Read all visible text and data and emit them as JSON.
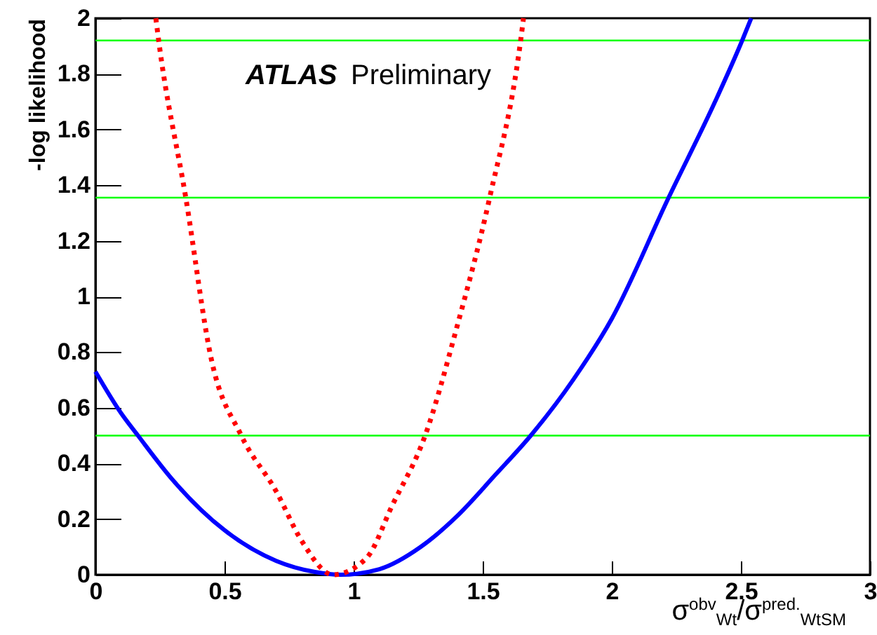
{
  "chart_data": {
    "type": "line",
    "xlabel": "σ$^{obv}$$_{Wt}$/σ$^{pred.}$$_{Wt}$$_{SM}$",
    "ylabel": "-log likelihood",
    "annotations": [
      "ATLAS Preliminary"
    ],
    "xlim": [
      0,
      3
    ],
    "ylim": [
      0,
      2
    ],
    "xticks": [
      0,
      0.5,
      1,
      1.5,
      2,
      2.5,
      3
    ],
    "yticks": [
      0,
      0.2,
      0.4,
      0.6,
      0.8,
      1,
      1.2,
      1.4,
      1.6,
      1.8,
      2
    ],
    "series": [
      {
        "color": "#0000ff",
        "line_style": "solid",
        "x": [
          0,
          0.1,
          0.165,
          0.3,
          0.5,
          0.7,
          0.85,
          0.95,
          1.1,
          1.26,
          1.4,
          1.55,
          1.686,
          1.85,
          2.0,
          2.22,
          2.4,
          2.505,
          2.54
        ],
        "values": [
          0.73,
          0.58,
          0.5,
          0.34,
          0.16,
          0.05,
          0.01,
          0,
          0.02,
          0.1,
          0.21,
          0.36,
          0.5,
          0.7,
          0.92,
          1.355,
          1.7,
          1.92,
          2.0
        ]
      },
      {
        "color": "#ff0000",
        "line_style": "dotted",
        "x": [
          0.234,
          0.245,
          0.35,
          0.45,
          0.565,
          0.7,
          0.8,
          0.92,
          1.05,
          1.15,
          1.277,
          1.4,
          1.527,
          1.647,
          1.658
        ],
        "values": [
          2.0,
          1.92,
          1.355,
          0.77,
          0.5,
          0.3,
          0.12,
          0,
          0.06,
          0.25,
          0.5,
          0.89,
          1.355,
          1.92,
          2.0
        ]
      }
    ],
    "ref_lines": [
      {
        "axis": "y",
        "value": 0.5,
        "color": "#00ff00"
      },
      {
        "axis": "y",
        "value": 1.355,
        "color": "#00ff00"
      },
      {
        "axis": "y",
        "value": 1.92,
        "color": "#00ff00"
      }
    ],
    "marker": "none"
  }
}
